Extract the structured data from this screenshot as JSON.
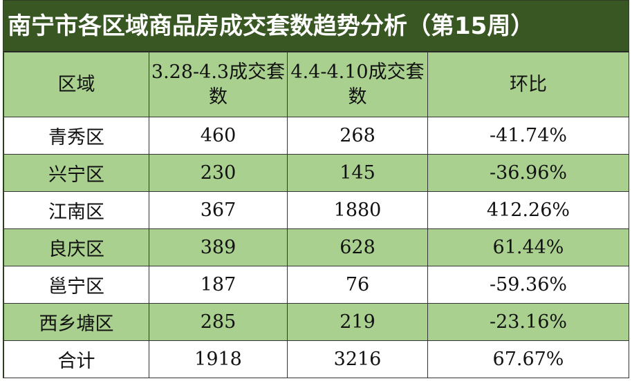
{
  "header": {
    "title": "南宁市各区域商品房成交套数趋势分析（第15周）"
  },
  "table": {
    "headers": [
      "区域",
      "3.28-4.3成交套数",
      "4.4-4.10成交套数",
      "环比"
    ],
    "rows": [
      [
        "青秀区",
        460,
        268,
        "-41.74%"
      ],
      [
        "兴宁区",
        230,
        145,
        "-36.96%"
      ],
      [
        "江南区",
        367,
        1880,
        "412.26%"
      ],
      [
        "良庆区",
        389,
        628,
        "61.44%"
      ],
      [
        "邕宁区",
        187,
        76,
        "-59.36%"
      ],
      [
        "西乡塘区",
        285,
        219,
        "-23.16%"
      ],
      [
        "合计",
        1918,
        3216,
        "67.67%"
      ]
    ]
  }
}
